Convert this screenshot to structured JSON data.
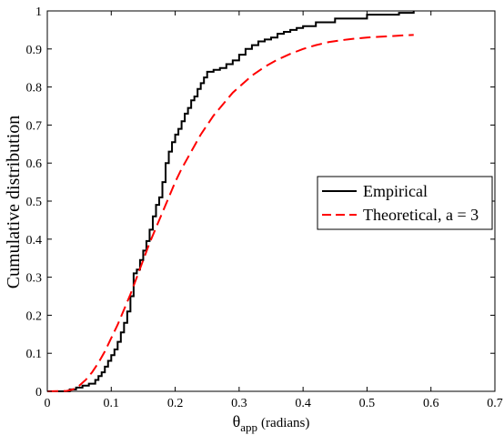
{
  "chart_data": {
    "type": "line",
    "title": "",
    "ylabel": "Cumulative distribution",
    "xlabel": {
      "symbol": "θ",
      "subscript": "app",
      "unit": "(radians)"
    },
    "xlim": [
      0,
      0.7
    ],
    "ylim": [
      0,
      1
    ],
    "xticks": [
      "0",
      "0.1",
      "0.2",
      "0.3",
      "0.4",
      "0.5",
      "0.6",
      "0.7"
    ],
    "yticks": [
      "0",
      "0.1",
      "0.2",
      "0.3",
      "0.4",
      "0.5",
      "0.6",
      "0.7",
      "0.8",
      "0.9",
      "1"
    ],
    "grid": false,
    "legend_position": "right",
    "series": [
      {
        "name": "Empirical",
        "color": "#000000",
        "style": "step",
        "x": [
          0,
          0.035,
          0.045,
          0.055,
          0.065,
          0.075,
          0.08,
          0.085,
          0.09,
          0.095,
          0.1,
          0.105,
          0.11,
          0.115,
          0.12,
          0.125,
          0.13,
          0.135,
          0.14,
          0.145,
          0.15,
          0.155,
          0.16,
          0.165,
          0.17,
          0.175,
          0.18,
          0.185,
          0.19,
          0.195,
          0.2,
          0.205,
          0.21,
          0.215,
          0.22,
          0.225,
          0.23,
          0.235,
          0.24,
          0.245,
          0.25,
          0.26,
          0.27,
          0.28,
          0.29,
          0.3,
          0.31,
          0.32,
          0.33,
          0.34,
          0.35,
          0.36,
          0.37,
          0.38,
          0.39,
          0.4,
          0.42,
          0.45,
          0.5,
          0.55,
          0.573
        ],
        "y": [
          0,
          0.005,
          0.01,
          0.015,
          0.02,
          0.03,
          0.04,
          0.05,
          0.065,
          0.08,
          0.095,
          0.11,
          0.13,
          0.155,
          0.18,
          0.21,
          0.25,
          0.31,
          0.32,
          0.345,
          0.37,
          0.395,
          0.425,
          0.46,
          0.49,
          0.51,
          0.55,
          0.6,
          0.63,
          0.655,
          0.675,
          0.69,
          0.71,
          0.73,
          0.745,
          0.765,
          0.775,
          0.795,
          0.81,
          0.825,
          0.84,
          0.845,
          0.85,
          0.86,
          0.87,
          0.885,
          0.9,
          0.91,
          0.92,
          0.925,
          0.93,
          0.94,
          0.945,
          0.95,
          0.955,
          0.96,
          0.97,
          0.98,
          0.99,
          0.995,
          1.0
        ]
      },
      {
        "name": "Theoretical, a = 3",
        "color": "#ff0000",
        "style": "dashed",
        "x": [
          0,
          0.03,
          0.04,
          0.05,
          0.06,
          0.07,
          0.08,
          0.09,
          0.1,
          0.11,
          0.12,
          0.13,
          0.14,
          0.15,
          0.16,
          0.17,
          0.18,
          0.19,
          0.2,
          0.21,
          0.22,
          0.23,
          0.24,
          0.25,
          0.26,
          0.27,
          0.28,
          0.29,
          0.3,
          0.32,
          0.34,
          0.36,
          0.38,
          0.4,
          0.42,
          0.44,
          0.46,
          0.48,
          0.5,
          0.52,
          0.54,
          0.56,
          0.573
        ],
        "y": [
          0,
          0.001,
          0.005,
          0.015,
          0.03,
          0.05,
          0.075,
          0.105,
          0.14,
          0.175,
          0.215,
          0.255,
          0.3,
          0.345,
          0.39,
          0.43,
          0.47,
          0.51,
          0.55,
          0.585,
          0.615,
          0.645,
          0.675,
          0.7,
          0.725,
          0.745,
          0.765,
          0.785,
          0.8,
          0.83,
          0.853,
          0.872,
          0.887,
          0.9,
          0.91,
          0.918,
          0.923,
          0.927,
          0.93,
          0.932,
          0.934,
          0.936,
          0.937
        ]
      }
    ]
  }
}
